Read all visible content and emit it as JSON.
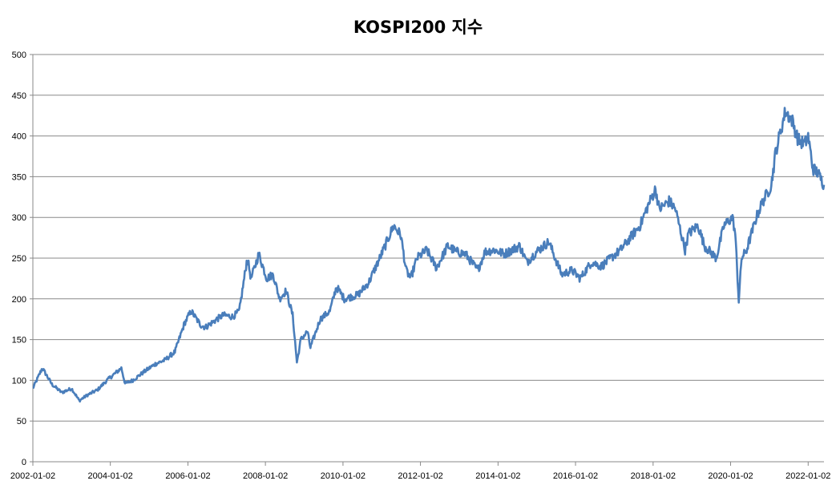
{
  "chart_data": {
    "type": "line",
    "title": "KOSPI200 지수",
    "xlabel": "",
    "ylabel": "",
    "ylim": [
      0,
      500
    ],
    "y_ticks": [
      0,
      50,
      100,
      150,
      200,
      250,
      300,
      350,
      400,
      450,
      500
    ],
    "xlim": [
      "2002-01-02",
      "2022-05-31"
    ],
    "x_ticks": [
      "2002-01-02",
      "2004-01-02",
      "2006-01-02",
      "2008-01-02",
      "2010-01-02",
      "2012-01-02",
      "2014-01-02",
      "2016-01-02",
      "2018-01-02",
      "2020-01-02",
      "2022-01-02"
    ],
    "grid": "horizontal",
    "legend": "none",
    "line_color": "#4a7ebb",
    "series": [
      {
        "x": [
          "2002-01-02",
          "2002-04-01",
          "2002-07-01",
          "2002-10-01",
          "2003-01-02",
          "2003-03-15",
          "2003-06-01",
          "2003-09-01",
          "2003-12-01",
          "2004-04-15",
          "2004-05-20",
          "2004-08-01",
          "2004-12-01",
          "2005-03-01",
          "2005-06-01",
          "2005-09-01",
          "2005-12-01",
          "2006-02-01",
          "2006-05-01",
          "2006-06-15",
          "2006-10-01",
          "2006-12-01",
          "2007-03-01",
          "2007-05-01",
          "2007-07-15",
          "2007-08-20",
          "2007-11-01",
          "2008-01-15",
          "2008-03-15",
          "2008-05-15",
          "2008-07-15",
          "2008-09-15",
          "2008-10-25",
          "2008-12-01",
          "2009-02-01",
          "2009-03-01",
          "2009-06-01",
          "2009-09-01",
          "2009-11-01",
          "2010-01-15",
          "2010-05-25",
          "2010-09-01",
          "2011-01-01",
          "2011-04-25",
          "2011-07-01",
          "2011-08-20",
          "2011-10-01",
          "2011-12-01",
          "2012-03-01",
          "2012-06-01",
          "2012-09-15",
          "2012-12-01",
          "2013-03-01",
          "2013-06-25",
          "2013-09-01",
          "2013-12-01",
          "2014-03-01",
          "2014-07-25",
          "2014-10-01",
          "2015-01-01",
          "2015-04-25",
          "2015-08-25",
          "2015-12-01",
          "2016-02-15",
          "2016-06-01",
          "2016-09-01",
          "2016-12-01",
          "2017-03-01",
          "2017-06-01",
          "2017-09-01",
          "2017-11-01",
          "2018-01-25",
          "2018-03-01",
          "2018-06-01",
          "2018-08-01",
          "2018-10-30",
          "2018-12-01",
          "2019-03-01",
          "2019-05-01",
          "2019-08-20",
          "2019-11-01",
          "2020-01-20",
          "2020-02-15",
          "2020-03-19",
          "2020-04-15",
          "2020-06-01",
          "2020-09-01",
          "2020-11-01",
          "2020-12-15",
          "2021-01-20",
          "2021-03-01",
          "2021-06-01",
          "2021-08-01",
          "2021-10-01",
          "2021-12-01",
          "2022-01-02",
          "2022-02-15",
          "2022-04-01",
          "2022-05-31"
        ],
        "y": [
          90,
          115,
          95,
          85,
          90,
          75,
          82,
          88,
          100,
          115,
          96,
          100,
          112,
          120,
          125,
          135,
          170,
          185,
          168,
          165,
          175,
          180,
          178,
          185,
          250,
          225,
          255,
          225,
          230,
          200,
          210,
          180,
          122,
          150,
          160,
          140,
          175,
          185,
          215,
          200,
          205,
          220,
          255,
          290,
          278,
          235,
          225,
          250,
          260,
          238,
          265,
          258,
          255,
          235,
          258,
          260,
          255,
          265,
          245,
          258,
          270,
          230,
          235,
          225,
          245,
          240,
          250,
          260,
          275,
          290,
          310,
          335,
          310,
          320,
          310,
          260,
          280,
          290,
          265,
          250,
          290,
          300,
          280,
          198,
          250,
          260,
          300,
          320,
          330,
          340,
          380,
          430,
          420,
          395,
          390,
          400,
          360,
          355,
          340
        ]
      }
    ]
  }
}
